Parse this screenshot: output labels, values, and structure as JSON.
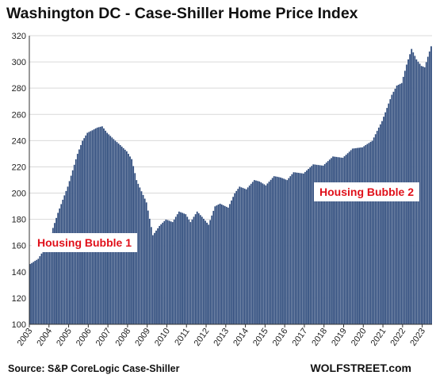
{
  "title": "Washington DC - Case-Shiller Home Price Index",
  "source": "Source: S&P CoreLogic Case-Shiller",
  "brand": "WOLFSTREET.com",
  "colors": {
    "bar": "#2e4b7c",
    "bar_edge": "#ffffff",
    "grid": "#d9d9d9",
    "annotation": "#e0101a"
  },
  "chart_data": {
    "type": "bar",
    "title": "Washington DC - Case-Shiller Home Price Index",
    "xlabel": "",
    "ylabel": "",
    "frequency": "monthly",
    "start": "2003-01",
    "end": "2023-06",
    "ylim": [
      100,
      320
    ],
    "yticks": [
      100,
      120,
      140,
      160,
      180,
      200,
      220,
      240,
      260,
      280,
      300,
      320
    ],
    "xticks": [
      "2003",
      "2004",
      "2005",
      "2006",
      "2007",
      "2008",
      "2009",
      "2010",
      "2011",
      "2012",
      "2013",
      "2014",
      "2015",
      "2016",
      "2017",
      "2018",
      "2019",
      "2020",
      "2021",
      "2022",
      "2023"
    ],
    "grid": "horizontal",
    "anchors": [
      [
        "2003-01",
        146
      ],
      [
        "2003-06",
        150
      ],
      [
        "2003-12",
        162
      ],
      [
        "2004-06",
        185
      ],
      [
        "2004-12",
        205
      ],
      [
        "2005-06",
        230
      ],
      [
        "2005-09",
        240
      ],
      [
        "2005-12",
        246
      ],
      [
        "2006-06",
        250
      ],
      [
        "2006-09",
        251
      ],
      [
        "2006-12",
        246
      ],
      [
        "2007-06",
        239
      ],
      [
        "2007-12",
        232
      ],
      [
        "2008-03",
        226
      ],
      [
        "2008-06",
        210
      ],
      [
        "2008-12",
        193
      ],
      [
        "2009-04",
        168
      ],
      [
        "2009-08",
        175
      ],
      [
        "2009-12",
        180
      ],
      [
        "2010-04",
        178
      ],
      [
        "2010-08",
        186
      ],
      [
        "2010-12",
        184
      ],
      [
        "2011-03",
        178
      ],
      [
        "2011-07",
        186
      ],
      [
        "2011-10",
        182
      ],
      [
        "2012-02",
        176
      ],
      [
        "2012-06",
        190
      ],
      [
        "2012-09",
        192
      ],
      [
        "2013-02",
        189
      ],
      [
        "2013-06",
        200
      ],
      [
        "2013-09",
        205
      ],
      [
        "2014-01",
        203
      ],
      [
        "2014-06",
        210
      ],
      [
        "2014-09",
        209
      ],
      [
        "2015-01",
        206
      ],
      [
        "2015-06",
        213
      ],
      [
        "2015-10",
        212
      ],
      [
        "2016-02",
        210
      ],
      [
        "2016-06",
        216
      ],
      [
        "2016-12",
        215
      ],
      [
        "2017-06",
        222
      ],
      [
        "2017-12",
        221
      ],
      [
        "2018-06",
        228
      ],
      [
        "2018-12",
        227
      ],
      [
        "2019-06",
        234
      ],
      [
        "2019-12",
        235
      ],
      [
        "2020-06",
        240
      ],
      [
        "2020-12",
        255
      ],
      [
        "2021-06",
        275
      ],
      [
        "2021-09",
        282
      ],
      [
        "2021-12",
        284
      ],
      [
        "2022-03",
        298
      ],
      [
        "2022-06",
        310
      ],
      [
        "2022-09",
        302
      ],
      [
        "2022-12",
        297
      ],
      [
        "2023-02",
        296
      ],
      [
        "2023-06",
        312
      ]
    ],
    "annotations": [
      "Housing Bubble 1",
      "Housing Bubble 2"
    ]
  }
}
